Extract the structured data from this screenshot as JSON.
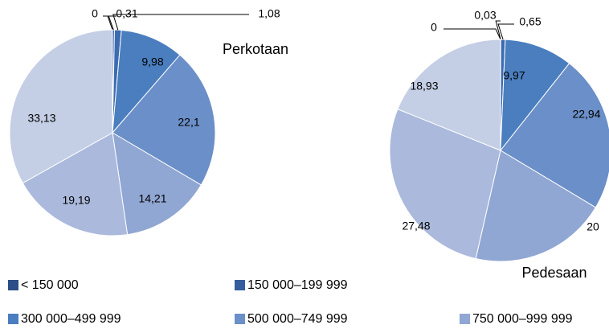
{
  "legend": {
    "categories": [
      "< 150 000",
      "150 000–199 999",
      null,
      "300 000–499 999",
      "500 000–749 999",
      "750 000–999 999",
      null,
      null
    ],
    "colors": [
      "#2b4f86",
      "#345e9e",
      "#3c6bb2",
      "#4a7ebf",
      "#6b8fc8",
      "#90a6d3",
      "#aab9dc",
      "#c4cee5"
    ]
  },
  "chart_data": [
    {
      "type": "pie",
      "title": "Perkotaan",
      "values": [
        0,
        0.31,
        1.08,
        9.98,
        22.1,
        14.21,
        19.19,
        33.13
      ],
      "value_labels": [
        "0",
        "0,31",
        "1,08",
        "9,98",
        "22,1",
        "14,21",
        "19,19",
        "33,13"
      ]
    },
    {
      "type": "pie",
      "title": "Pedesaan",
      "values": [
        0,
        0.03,
        0.65,
        9.97,
        22.94,
        20,
        27.48,
        18.93
      ],
      "value_labels": [
        "0",
        "0,03",
        "0,65",
        "9,97",
        "22,94",
        "20",
        "27,48",
        "18,93"
      ]
    }
  ]
}
